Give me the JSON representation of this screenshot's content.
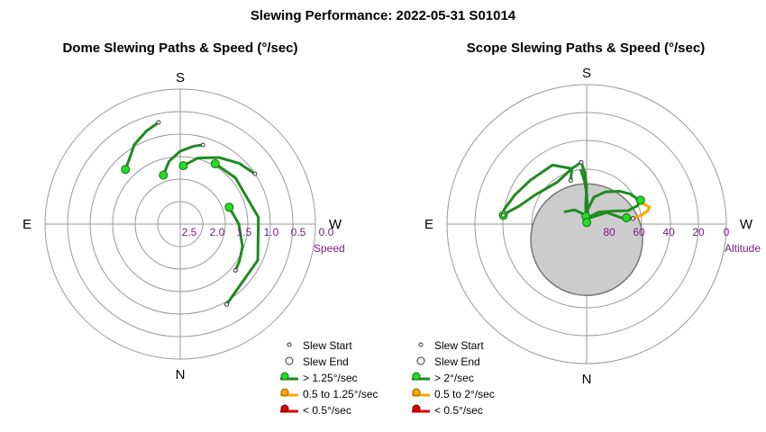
{
  "page_title": "Slewing Performance: 2022-05-31 S01014",
  "dome": {
    "title": "Dome Slewing Paths & Speed (°/sec)",
    "directions": {
      "top": "S",
      "left": "E",
      "right": "W",
      "bottom": "N"
    },
    "tick_labels": [
      "2.5",
      "2.0",
      "1.5",
      "1.0",
      "0.5",
      "0.0"
    ],
    "axis_label": "Speed",
    "legend": [
      {
        "label": "Slew Start",
        "kind": "start"
      },
      {
        "label": "Slew End",
        "kind": "end"
      },
      {
        "label": "> 1.25°/sec",
        "kind": "fast"
      },
      {
        "label": "0.5 to 1.25°/sec",
        "kind": "medium"
      },
      {
        "label": "< 0.5°/sec",
        "kind": "slow"
      }
    ]
  },
  "scope": {
    "title": "Scope Slewing Paths & Speed (°/sec)",
    "directions": {
      "top": "S",
      "left": "E",
      "right": "W",
      "bottom": "N"
    },
    "tick_labels": [
      "80",
      "60",
      "40",
      "20",
      "0"
    ],
    "axis_label": "Altitude",
    "legend": [
      {
        "label": "Slew Start",
        "kind": "start"
      },
      {
        "label": "Slew End",
        "kind": "end"
      },
      {
        "label": "> 2°/sec",
        "kind": "fast"
      },
      {
        "label": "0.5 to 2°/sec",
        "kind": "medium"
      },
      {
        "label": "< 0.5°/sec",
        "kind": "slow"
      }
    ]
  },
  "colors": {
    "fast": "#1e8a1e",
    "fast_marker": "#22dd22",
    "medium": "#ffa500",
    "slow": "#dd0000",
    "grid": "#999999",
    "tick": "#7a1a7a",
    "zenith_patch": "#cccccc"
  },
  "chart_data": [
    {
      "type": "scatter",
      "projection": "polar",
      "title": "Dome Slewing Paths & Speed (°/sec)",
      "radial_axis": {
        "label": "Speed",
        "unit": "°/sec",
        "range": [
          3.0,
          0.0
        ],
        "ticks": [
          2.5,
          2.0,
          1.5,
          1.0,
          0.5,
          0.0
        ]
      },
      "angular_axis": {
        "labels": [
          "S",
          "W",
          "N",
          "E"
        ]
      },
      "series": [
        {
          "name": "> 1.25°/sec",
          "paths": [
            [
              [
                -19,
                1.15
              ],
              [
                -10,
                1.42
              ],
              [
                0,
                1.62
              ],
              [
                10,
                1.76
              ],
              [
                16,
                1.83
              ]
            ],
            [
              [
                71,
                1.15
              ],
              [
                90,
                1.3
              ],
              [
                110,
                1.47
              ],
              [
                122,
                1.55
              ],
              [
                130,
                1.6
              ]
            ],
            [
              [
                3,
                1.3
              ],
              [
                15,
                1.52
              ],
              [
                30,
                1.71
              ],
              [
                44,
                1.88
              ],
              [
                56,
                2.0
              ]
            ],
            [
              [
                30,
                1.55
              ],
              [
                50,
                1.6
              ],
              [
                85,
                1.74
              ],
              [
                115,
                1.9
              ],
              [
                150,
                2.06
              ]
            ],
            [
              [
                -45,
                1.72
              ],
              [
                -35,
                1.9
              ],
              [
                -30,
                2.04
              ],
              [
                -20,
                2.2
              ],
              [
                -12,
                2.31
              ]
            ]
          ]
        }
      ],
      "slew_starts": [
        [
          16,
          1.83
        ],
        [
          130,
          1.6
        ],
        [
          56,
          2.0
        ],
        [
          150,
          2.06
        ],
        [
          -12,
          2.31
        ]
      ],
      "slew_ends": [
        [
          -19,
          1.15
        ],
        [
          71,
          1.15
        ],
        [
          3,
          1.3
        ],
        [
          30,
          1.55
        ],
        [
          -45,
          1.72
        ]
      ]
    },
    {
      "type": "scatter",
      "projection": "polar",
      "title": "Scope Slewing Paths & Speed (°/sec)",
      "radial_axis": {
        "label": "Altitude",
        "unit": "°",
        "range": [
          90,
          0
        ],
        "ticks": [
          80,
          60,
          40,
          20,
          0
        ]
      },
      "angular_axis": {
        "labels": [
          "S",
          "W",
          "N",
          "E"
        ]
      },
      "series": [
        {
          "name": "> 2°/sec",
          "paths": [
            [
              [
                -5,
                50
              ],
              [
                -2,
                57
              ],
              [
                0,
                66
              ],
              [
                -1,
                72
              ],
              [
                -3,
                78
              ],
              [
                -3,
                82
              ],
              [
                -5,
                85
              ]
            ],
            [
              [
                -6,
                55
              ],
              [
                -3,
                62
              ],
              [
                0,
                70
              ],
              [
                2,
                78
              ],
              [
                3,
                84
              ],
              [
                3,
                87
              ],
              [
                3,
                89
              ],
              [
                2,
                89
              ]
            ],
            [
              [
                -5,
                50
              ],
              [
                -15,
                53
              ],
              [
                -35,
                57
              ],
              [
                -60,
                52
              ],
              [
                -75,
                45
              ],
              [
                -81,
                39
              ],
              [
                -84,
                36
              ]
            ],
            [
              [
                -20,
                60
              ],
              [
                -15,
                53
              ],
              [
                -30,
                46
              ],
              [
                -52,
                44
              ],
              [
                -68,
                40
              ],
              [
                -80,
                36
              ],
              [
                -84,
                36
              ]
            ],
            [
              [
                2,
                89
              ],
              [
                5,
                80
              ],
              [
                15,
                72
              ],
              [
                30,
                66
              ],
              [
                45,
                60
              ],
              [
                55,
                56
              ],
              [
                62,
                54
              ],
              [
                68,
                53
              ]
            ],
            [
              [
                2,
                89
              ],
              [
                10,
                86
              ],
              [
                45,
                79
              ],
              [
                65,
                70
              ],
              [
                72,
                62
              ],
              [
                70,
                55
              ],
              [
                66,
                52
              ]
            ],
            [
              [
                -60,
                74
              ],
              [
                -40,
                78
              ],
              [
                -10,
                84
              ],
              [
                20,
                86
              ],
              [
                60,
                75
              ],
              [
                80,
                67
              ],
              [
                81,
                64
              ]
            ]
          ]
        },
        {
          "name": "0.5 to 2°/sec",
          "paths": [
            [
              [
                68,
                53
              ],
              [
                72,
                50
              ],
              [
                75,
                48
              ],
              [
                78,
                50
              ],
              [
                81,
                55
              ],
              [
                83,
                60
              ]
            ]
          ]
        },
        {
          "name": "< 0.5°/sec",
          "paths": [
            [
              [
                -84,
                36
              ],
              [
                -85,
                36
              ],
              [
                -84,
                37
              ]
            ]
          ]
        }
      ],
      "slew_starts": [
        [
          -84,
          36
        ],
        [
          83,
          60
        ],
        [
          -5,
          50
        ],
        [
          -20,
          60
        ]
      ],
      "slew_ends": [
        [
          -5,
          85
        ],
        [
          66,
          52
        ],
        [
          -84,
          36
        ],
        [
          2,
          89
        ],
        [
          81,
          64
        ]
      ],
      "zenith_patch": {
        "azimuth": 180,
        "altitude": 80,
        "angular_radius": 9
      }
    }
  ]
}
